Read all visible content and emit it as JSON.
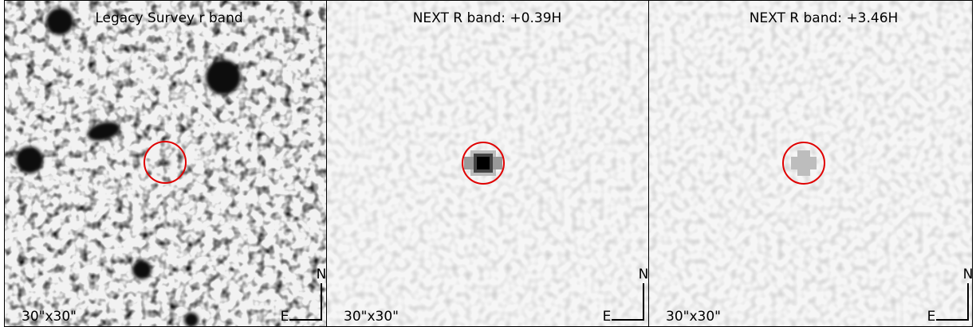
{
  "panels": [
    {
      "title": "Legacy Survey r band",
      "scale": "30\"x30\"",
      "north": "N",
      "east": "E"
    },
    {
      "title": "NEXT R band: +0.39H",
      "scale": "30\"x30\"",
      "north": "N",
      "east": "E"
    },
    {
      "title": "NEXT R band: +3.46H",
      "scale": "30\"x30\"",
      "north": "N",
      "east": "E"
    }
  ]
}
